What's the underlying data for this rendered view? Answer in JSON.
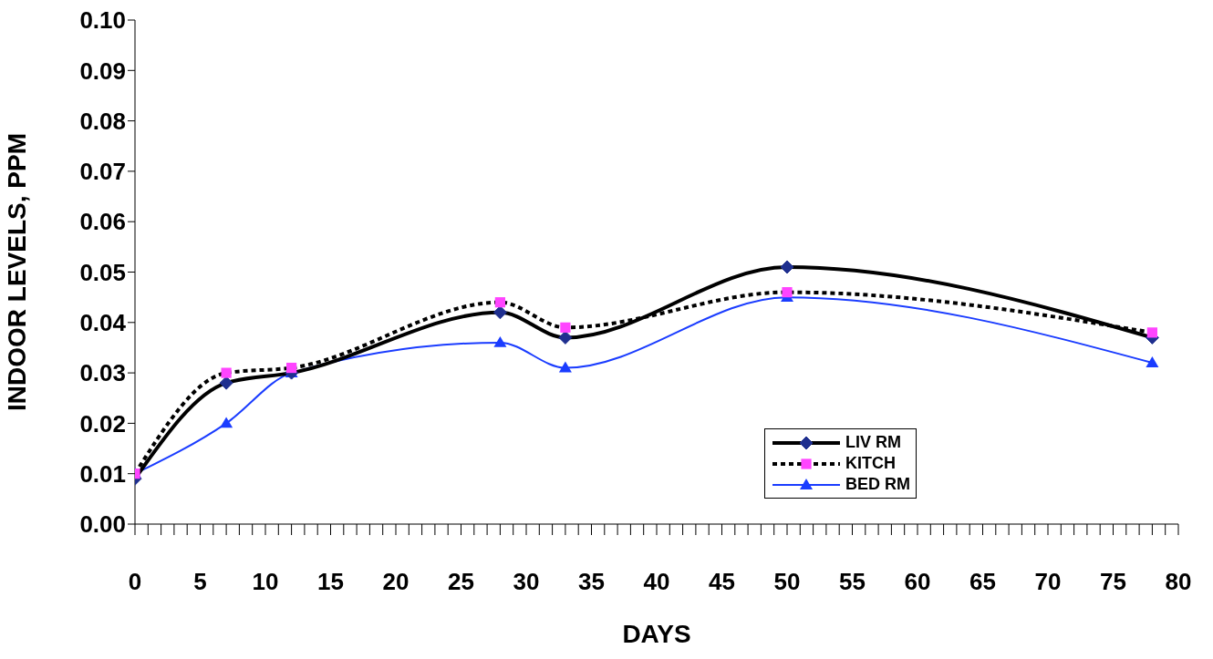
{
  "chart_data": {
    "type": "line",
    "xlabel": "DAYS",
    "ylabel": "INDOOR LEVELS, PPM",
    "x": [
      0,
      7,
      12,
      28,
      33,
      50,
      78
    ],
    "series": [
      {
        "name": "LIV RM",
        "color": "#000000",
        "colors": [
          "#1f2f8f",
          "#1f2f8f",
          "#1f2f8f",
          "#1f2f8f",
          "#1f2f8f",
          "#1f2f8f",
          "#1f2f8f"
        ],
        "marker": "diamond",
        "line_style": "solid",
        "values": [
          0.009,
          0.028,
          0.03,
          0.042,
          0.037,
          0.051,
          0.037
        ]
      },
      {
        "name": "KITCH",
        "color": "#000000",
        "colors": [
          "#ff44ff",
          "#ff44ff",
          "#ff44ff",
          "#ff44ff",
          "#ff44ff",
          "#ff44ff",
          "#ff44ff"
        ],
        "marker": "square",
        "line_style": "dotted",
        "values": [
          0.01,
          0.03,
          0.031,
          0.044,
          0.039,
          0.046,
          0.038
        ]
      },
      {
        "name": "BED RM",
        "color": "#1a3cff",
        "colors": [
          "#1a3cff",
          "#1a3cff",
          "#1a3cff",
          "#1a3cff",
          "#1a3cff",
          "#1a3cff",
          "#1a3cff"
        ],
        "marker": "triangle",
        "line_style": "solid",
        "values": [
          0.01,
          0.02,
          0.03,
          0.036,
          0.031,
          0.045,
          0.032
        ]
      }
    ],
    "xlim": [
      0,
      80
    ],
    "xticks": [
      {
        "value": 0,
        "label": "0"
      },
      {
        "value": 1,
        "label": null
      },
      {
        "value": 2,
        "label": null
      },
      {
        "value": 3,
        "label": null
      },
      {
        "value": 4,
        "label": null
      },
      {
        "value": 5,
        "label": "5"
      },
      {
        "value": 6,
        "label": null
      },
      {
        "value": 7,
        "label": null
      },
      {
        "value": 8,
        "label": null
      },
      {
        "value": 9,
        "label": null
      },
      {
        "value": 10,
        "label": "10"
      },
      {
        "value": 11,
        "label": null
      },
      {
        "value": 12,
        "label": null
      },
      {
        "value": 13,
        "label": null
      },
      {
        "value": 14,
        "label": null
      },
      {
        "value": 15,
        "label": "15"
      },
      {
        "value": 16,
        "label": null
      },
      {
        "value": 17,
        "label": null
      },
      {
        "value": 18,
        "label": null
      },
      {
        "value": 19,
        "label": null
      },
      {
        "value": 20,
        "label": "20"
      },
      {
        "value": 21,
        "label": null
      },
      {
        "value": 22,
        "label": null
      },
      {
        "value": 23,
        "label": null
      },
      {
        "value": 24,
        "label": null
      },
      {
        "value": 25,
        "label": "25"
      },
      {
        "value": 26,
        "label": null
      },
      {
        "value": 27,
        "label": null
      },
      {
        "value": 28,
        "label": null
      },
      {
        "value": 29,
        "label": null
      },
      {
        "value": 30,
        "label": "30"
      },
      {
        "value": 31,
        "label": null
      },
      {
        "value": 32,
        "label": null
      },
      {
        "value": 33,
        "label": null
      },
      {
        "value": 34,
        "label": null
      },
      {
        "value": 35,
        "label": "35"
      },
      {
        "value": 36,
        "label": null
      },
      {
        "value": 37,
        "label": null
      },
      {
        "value": 38,
        "label": null
      },
      {
        "value": 39,
        "label": null
      },
      {
        "value": 40,
        "label": "40"
      },
      {
        "value": 41,
        "label": null
      },
      {
        "value": 42,
        "label": null
      },
      {
        "value": 43,
        "label": null
      },
      {
        "value": 44,
        "label": null
      },
      {
        "value": 45,
        "label": "45"
      },
      {
        "value": 46,
        "label": null
      },
      {
        "value": 47,
        "label": null
      },
      {
        "value": 48,
        "label": null
      },
      {
        "value": 49,
        "label": null
      },
      {
        "value": 50,
        "label": "50"
      },
      {
        "value": 51,
        "label": null
      },
      {
        "value": 52,
        "label": null
      },
      {
        "value": 53,
        "label": null
      },
      {
        "value": 54,
        "label": null
      },
      {
        "value": 55,
        "label": "55"
      },
      {
        "value": 56,
        "label": null
      },
      {
        "value": 57,
        "label": null
      },
      {
        "value": 58,
        "label": null
      },
      {
        "value": 59,
        "label": null
      },
      {
        "value": 60,
        "label": "60"
      },
      {
        "value": 61,
        "label": null
      },
      {
        "value": 62,
        "label": null
      },
      {
        "value": 63,
        "label": null
      },
      {
        "value": 64,
        "label": null
      },
      {
        "value": 65,
        "label": "65"
      },
      {
        "value": 66,
        "label": null
      },
      {
        "value": 67,
        "label": null
      },
      {
        "value": 68,
        "label": null
      },
      {
        "value": 69,
        "label": null
      },
      {
        "value": 70,
        "label": "70"
      },
      {
        "value": 71,
        "label": null
      },
      {
        "value": 72,
        "label": null
      },
      {
        "value": 73,
        "label": null
      },
      {
        "value": 74,
        "label": null
      },
      {
        "value": 75,
        "label": "75"
      },
      {
        "value": 76,
        "label": null
      },
      {
        "value": 77,
        "label": null
      },
      {
        "value": 78,
        "label": null
      },
      {
        "value": 79,
        "label": null
      },
      {
        "value": 80,
        "label": "80"
      }
    ],
    "ylim": [
      0,
      0.1
    ],
    "yticks": [
      {
        "value": 0,
        "label": "0.00"
      },
      {
        "value": 0.01,
        "label": "0.01"
      },
      {
        "value": 0.02,
        "label": "0.02"
      },
      {
        "value": 0.03,
        "label": "0.03"
      },
      {
        "value": 0.04,
        "label": "0.04"
      },
      {
        "value": 0.05,
        "label": "0.05"
      },
      {
        "value": 0.06,
        "label": "0.06"
      },
      {
        "value": 0.07,
        "label": "0.07"
      },
      {
        "value": 0.08,
        "label": "0.08"
      },
      {
        "value": 0.09,
        "label": "0.09"
      },
      {
        "value": 0.1,
        "label": "0.10"
      }
    ],
    "grid": false,
    "legend": "bottom right"
  }
}
